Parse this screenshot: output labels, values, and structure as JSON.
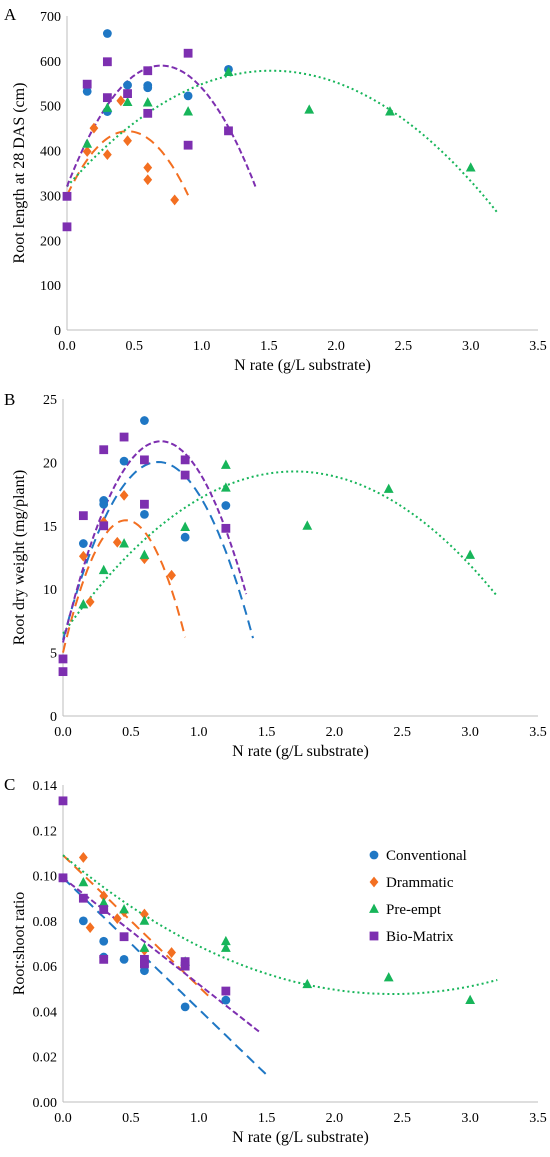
{
  "series_styles": {
    "Conventional": {
      "color": "#1f77c4",
      "marker": "circle",
      "dash": "10,6"
    },
    "Drammatic": {
      "color": "#f36f21",
      "marker": "diamond",
      "dash": "10,6"
    },
    "Pre-empt": {
      "color": "#17b55a",
      "marker": "triangle",
      "dash": "2,3"
    },
    "Bio-Matrix": {
      "color": "#7d2fb0",
      "marker": "square",
      "dash": "6,3"
    }
  },
  "chart_data": [
    {
      "panel": "A",
      "type": "scatter",
      "xlabel": "N rate (g/L substrate)",
      "ylabel": "Root length at 28 DAS (cm)",
      "xlim": [
        0,
        3.5
      ],
      "ylim": [
        0,
        700
      ],
      "xticks": [
        "0.0",
        "0.5",
        "1.0",
        "1.5",
        "2.0",
        "2.5",
        "3.0",
        "3.5"
      ],
      "yticks": [
        "0",
        "100",
        "200",
        "300",
        "400",
        "500",
        "600",
        "700"
      ],
      "legend": false,
      "series": [
        {
          "name": "Conventional",
          "points": [
            [
              0.15,
              532
            ],
            [
              0.3,
              661
            ],
            [
              0.3,
              487
            ],
            [
              0.45,
              546
            ],
            [
              0.6,
              545
            ],
            [
              0.6,
              540
            ],
            [
              0.9,
              522
            ],
            [
              1.2,
              581
            ]
          ],
          "fit": null
        },
        {
          "name": "Drammatic",
          "points": [
            [
              0.15,
              398
            ],
            [
              0.2,
              450
            ],
            [
              0.3,
              391
            ],
            [
              0.4,
              511
            ],
            [
              0.45,
              422
            ],
            [
              0.6,
              362
            ],
            [
              0.6,
              335
            ],
            [
              0.8,
              290
            ]
          ],
          "fit": {
            "x0": 0.0,
            "x1": 0.9,
            "coef": [
              300,
              636,
              -706
            ]
          }
        },
        {
          "name": "Pre-empt",
          "points": [
            [
              0.15,
              415
            ],
            [
              0.3,
              495
            ],
            [
              0.45,
              508
            ],
            [
              0.6,
              507
            ],
            [
              0.9,
              487
            ],
            [
              1.2,
              575
            ],
            [
              1.8,
              491
            ],
            [
              2.4,
              487
            ],
            [
              3.0,
              362
            ]
          ],
          "fit": {
            "x0": 0.0,
            "x1": 3.2,
            "coef": [
              320,
              340,
              -112
            ]
          }
        },
        {
          "name": "Bio-Matrix",
          "points": [
            [
              0.0,
              298
            ],
            [
              0.0,
              230
            ],
            [
              0.15,
              548
            ],
            [
              0.3,
              598
            ],
            [
              0.3,
              518
            ],
            [
              0.45,
              527
            ],
            [
              0.6,
              578
            ],
            [
              0.6,
              483
            ],
            [
              0.9,
              617
            ],
            [
              0.9,
              412
            ],
            [
              1.2,
              444
            ]
          ],
          "fit": {
            "x0": 0.0,
            "x1": 1.4,
            "coef": [
              320,
              770,
              -550
            ]
          }
        }
      ]
    },
    {
      "panel": "B",
      "type": "scatter",
      "xlabel": "N rate (g/L substrate)",
      "ylabel": "Root dry weight (mg/plant)",
      "xlim": [
        0,
        3.5
      ],
      "ylim": [
        0,
        25
      ],
      "xticks": [
        "0.0",
        "0.5",
        "1.0",
        "1.5",
        "2.0",
        "2.5",
        "3.0",
        "3.5"
      ],
      "yticks": [
        "0",
        "5",
        "10",
        "15",
        "20",
        "25"
      ],
      "legend": false,
      "series": [
        {
          "name": "Conventional",
          "points": [
            [
              0.15,
              13.6
            ],
            [
              0.3,
              17.0
            ],
            [
              0.3,
              16.7
            ],
            [
              0.45,
              20.1
            ],
            [
              0.6,
              23.3
            ],
            [
              0.6,
              15.9
            ],
            [
              0.9,
              14.1
            ],
            [
              1.2,
              16.6
            ]
          ],
          "fit": {
            "x0": 0.0,
            "x1": 1.4,
            "coef": [
              6.0,
              40.0,
              -28.5
            ]
          }
        },
        {
          "name": "Drammatic",
          "points": [
            [
              0.15,
              12.6
            ],
            [
              0.2,
              9.0
            ],
            [
              0.3,
              15.3
            ],
            [
              0.4,
              13.7
            ],
            [
              0.45,
              17.4
            ],
            [
              0.6,
              12.4
            ],
            [
              0.8,
              11.1
            ]
          ],
          "fit": {
            "x0": 0.0,
            "x1": 0.9,
            "coef": [
              5.0,
              45.0,
              -48.5
            ]
          }
        },
        {
          "name": "Pre-empt",
          "points": [
            [
              0.15,
              8.8
            ],
            [
              0.3,
              11.5
            ],
            [
              0.45,
              13.6
            ],
            [
              0.6,
              12.7
            ],
            [
              0.9,
              14.9
            ],
            [
              1.2,
              19.8
            ],
            [
              1.2,
              18.0
            ],
            [
              1.8,
              15.0
            ],
            [
              2.4,
              17.9
            ],
            [
              3.0,
              12.7
            ]
          ],
          "fit": {
            "x0": 0.0,
            "x1": 3.2,
            "coef": [
              6.5,
              15.0,
              -4.4
            ]
          }
        },
        {
          "name": "Bio-Matrix",
          "points": [
            [
              0.0,
              4.5
            ],
            [
              0.0,
              3.5
            ],
            [
              0.15,
              15.8
            ],
            [
              0.3,
              21.0
            ],
            [
              0.3,
              15.0
            ],
            [
              0.45,
              22.0
            ],
            [
              0.6,
              20.2
            ],
            [
              0.6,
              16.7
            ],
            [
              0.9,
              20.2
            ],
            [
              0.9,
              19.0
            ],
            [
              1.2,
              14.8
            ]
          ],
          "fit": {
            "x0": 0.0,
            "x1": 1.35,
            "coef": [
              5.8,
              44.0,
              -30.5
            ]
          }
        }
      ]
    },
    {
      "panel": "C",
      "type": "scatter",
      "xlabel": "N rate (g/L substrate)",
      "ylabel": "Root:shoot ratio",
      "xlim": [
        0,
        3.5
      ],
      "ylim": [
        0,
        0.14
      ],
      "xticks": [
        "0.0",
        "0.5",
        "1.0",
        "1.5",
        "2.0",
        "2.5",
        "3.0",
        "3.5"
      ],
      "yticks": [
        "0.00",
        "0.02",
        "0.04",
        "0.06",
        "0.08",
        "0.10",
        "0.12",
        "0.14"
      ],
      "legend": true,
      "legend_position": "right",
      "series": [
        {
          "name": "Conventional",
          "points": [
            [
              0.0,
              0.099
            ],
            [
              0.15,
              0.08
            ],
            [
              0.3,
              0.071
            ],
            [
              0.3,
              0.064
            ],
            [
              0.45,
              0.063
            ],
            [
              0.6,
              0.06
            ],
            [
              0.6,
              0.058
            ],
            [
              0.9,
              0.042
            ],
            [
              1.2,
              0.045
            ]
          ],
          "fit": {
            "x0": 0.0,
            "x1": 1.5,
            "coef": [
              0.099,
              -0.058,
              0.0
            ]
          }
        },
        {
          "name": "Drammatic",
          "points": [
            [
              0.15,
              0.108
            ],
            [
              0.2,
              0.077
            ],
            [
              0.3,
              0.091
            ],
            [
              0.4,
              0.081
            ],
            [
              0.45,
              0.084
            ],
            [
              0.6,
              0.083
            ],
            [
              0.6,
              0.067
            ],
            [
              0.8,
              0.066
            ]
          ],
          "fit": {
            "x0": 0.0,
            "x1": 1.1,
            "coef": [
              0.109,
              -0.058,
              0.0
            ]
          }
        },
        {
          "name": "Pre-empt",
          "points": [
            [
              0.15,
              0.097
            ],
            [
              0.3,
              0.088
            ],
            [
              0.45,
              0.085
            ],
            [
              0.6,
              0.08
            ],
            [
              0.6,
              0.068
            ],
            [
              0.9,
              0.062
            ],
            [
              1.2,
              0.071
            ],
            [
              1.2,
              0.068
            ],
            [
              1.8,
              0.052
            ],
            [
              2.4,
              0.055
            ],
            [
              3.0,
              0.045
            ]
          ],
          "fit": {
            "x0": 0.0,
            "x1": 3.2,
            "coef": [
              0.109,
              -0.0505,
              0.0104
            ]
          }
        },
        {
          "name": "Bio-Matrix",
          "points": [
            [
              0.0,
              0.133
            ],
            [
              0.0,
              0.099
            ],
            [
              0.15,
              0.09
            ],
            [
              0.3,
              0.085
            ],
            [
              0.3,
              0.063
            ],
            [
              0.45,
              0.073
            ],
            [
              0.6,
              0.063
            ],
            [
              0.6,
              0.061
            ],
            [
              0.9,
              0.062
            ],
            [
              0.9,
              0.06
            ],
            [
              1.2,
              0.049
            ]
          ],
          "fit": {
            "x0": 0.0,
            "x1": 1.45,
            "coef": [
              0.099,
              -0.047,
              0.0
            ]
          }
        }
      ]
    }
  ]
}
